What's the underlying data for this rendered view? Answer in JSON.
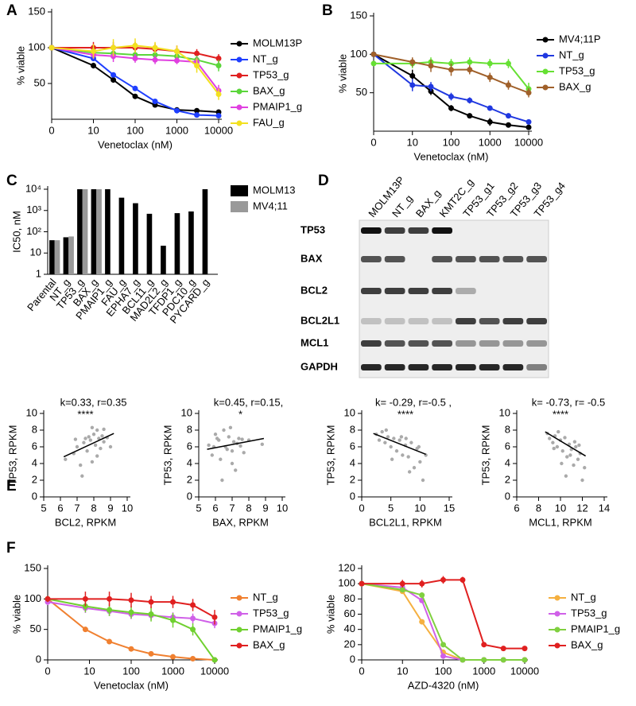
{
  "chart_data": [
    {
      "panel": "A",
      "type": "line",
      "xlabel": "Venetoclax (nM)",
      "ylabel": "% viable",
      "xlog": true,
      "x": [
        0,
        10,
        30,
        100,
        300,
        1000,
        3000,
        10000
      ],
      "xlim": [
        0,
        10000
      ],
      "xticks": [
        0,
        10,
        100,
        1000,
        10000
      ],
      "ylim": [
        0,
        150
      ],
      "yticks": [
        50,
        100,
        150
      ],
      "series": [
        {
          "name": "MOLM13P",
          "color": "#000000",
          "values": [
            100,
            75,
            55,
            32,
            20,
            13,
            12,
            10
          ],
          "errors": [
            2,
            4,
            4,
            3,
            2,
            2,
            2,
            2
          ]
        },
        {
          "name": "NT_g",
          "color": "#1f3fff",
          "values": [
            100,
            85,
            62,
            43,
            25,
            12,
            6,
            5
          ],
          "errors": [
            2,
            3,
            3,
            3,
            2,
            2,
            2,
            2
          ]
        },
        {
          "name": "TP53_g",
          "color": "#e02020",
          "values": [
            100,
            100,
            100,
            100,
            98,
            95,
            92,
            85
          ],
          "errors": [
            3,
            8,
            8,
            8,
            8,
            8,
            6,
            6
          ]
        },
        {
          "name": "BAX_g",
          "color": "#5bd63b",
          "values": [
            100,
            93,
            92,
            90,
            90,
            88,
            83,
            75
          ],
          "errors": [
            3,
            8,
            8,
            8,
            6,
            8,
            6,
            8
          ]
        },
        {
          "name": "PMAIP1_g",
          "color": "#e040e0",
          "values": [
            100,
            90,
            88,
            85,
            83,
            82,
            80,
            40
          ],
          "errors": [
            3,
            6,
            8,
            6,
            6,
            5,
            6,
            8
          ]
        },
        {
          "name": "FAU_g",
          "color": "#f2e020",
          "values": [
            100,
            95,
            100,
            103,
            100,
            95,
            75,
            35
          ],
          "errors": [
            3,
            10,
            12,
            10,
            8,
            8,
            10,
            8
          ]
        }
      ]
    },
    {
      "panel": "B",
      "type": "line",
      "xlabel": "Venetoclax (nM)",
      "ylabel": "% viable",
      "xlog": true,
      "x": [
        0,
        10,
        30,
        100,
        300,
        1000,
        3000,
        10000
      ],
      "xlim": [
        0,
        10000
      ],
      "xticks": [
        0,
        10,
        100,
        1000,
        10000
      ],
      "ylim": [
        0,
        150
      ],
      "yticks": [
        50,
        100,
        150
      ],
      "series": [
        {
          "name": "MV4;11P",
          "color": "#000000",
          "values": [
            100,
            72,
            52,
            30,
            20,
            12,
            8,
            5
          ],
          "errors": [
            2,
            8,
            5,
            4,
            3,
            5,
            3,
            2
          ]
        },
        {
          "name": "NT_g",
          "color": "#2038e0",
          "values": [
            100,
            60,
            58,
            45,
            40,
            30,
            20,
            12
          ],
          "errors": [
            3,
            8,
            6,
            5,
            4,
            3,
            3,
            2
          ]
        },
        {
          "name": "TP53_g",
          "color": "#66e033",
          "values": [
            88,
            88,
            90,
            88,
            90,
            88,
            88,
            55
          ],
          "errors": [
            3,
            6,
            6,
            6,
            6,
            6,
            6,
            8
          ]
        },
        {
          "name": "BAX_g",
          "color": "#a0602a",
          "values": [
            100,
            90,
            85,
            80,
            80,
            70,
            60,
            50
          ],
          "errors": [
            3,
            6,
            8,
            8,
            6,
            6,
            6,
            6
          ]
        }
      ]
    },
    {
      "panel": "C",
      "type": "bar",
      "ylabel": "IC50, nM",
      "ylog": true,
      "categories": [
        "Parental",
        "NT_g",
        "TP53_g",
        "BAX_g",
        "PMAIP1_g",
        "FAU_g",
        "EPHA7_g",
        "BCL11_g",
        "MAD2L2_g",
        "TFDP1_g",
        "PDC10_g",
        "PYCARD_g"
      ],
      "ylim": [
        1,
        10000
      ],
      "yticks": [
        1,
        10,
        {
          "value": 100,
          "label": "10²"
        },
        {
          "value": 1000,
          "label": "10³"
        },
        {
          "value": 10000,
          "label": "10⁴"
        }
      ],
      "series": [
        {
          "name": "MOLM13",
          "color": "#000000",
          "values": [
            40,
            55,
            10000,
            10000,
            10000,
            4000,
            2200,
            700,
            22,
            750,
            900,
            10000
          ]
        },
        {
          "name": "MV4;11",
          "color": "#999999",
          "values": [
            40,
            60,
            10000,
            10000,
            null,
            null,
            null,
            null,
            null,
            null,
            null,
            null
          ]
        }
      ]
    },
    {
      "panel": "E",
      "type": "scatter",
      "xlabel": "BCL2,  RPKM",
      "ylabel": "TP53,  RPKM",
      "annotation": "k=0.33, r=0.35",
      "significance": "****",
      "xlim": [
        5,
        10
      ],
      "xticks": [
        5,
        6,
        7,
        8,
        9,
        10
      ],
      "ylim": [
        0,
        10
      ],
      "yticks": [
        0,
        2,
        4,
        6,
        8,
        10
      ],
      "color": "#aaaaaa",
      "x": [
        6.3,
        6.8,
        7.0,
        7.2,
        7.4,
        7.5,
        7.6,
        7.7,
        7.8,
        7.9,
        8.0,
        8.1,
        8.2,
        8.3,
        8.4,
        8.5,
        8.6,
        8.8,
        9.0,
        7.3,
        7.9,
        8.2,
        6.9,
        8.6
      ],
      "values": [
        4.5,
        5.2,
        6.0,
        3.8,
        6.5,
        7.0,
        5.5,
        7.2,
        6.8,
        4.2,
        7.5,
        6.2,
        8.0,
        7.0,
        5.8,
        7.3,
        6.6,
        7.1,
        6.0,
        2.5,
        8.3,
        4.9,
        6.9,
        8.1
      ],
      "fit": {
        "x": [
          6.2,
          9.2
        ],
        "y": [
          4.8,
          7.6
        ]
      }
    },
    {
      "type": "scatter",
      "xlabel": "BAX, RPKM",
      "ylabel": "TP53,  RPKM",
      "annotation": "k=0.45, r=0.15,",
      "significance": "*",
      "xlim": [
        5,
        10
      ],
      "xticks": [
        5,
        6,
        7,
        8,
        9,
        10
      ],
      "ylim": [
        0,
        10
      ],
      "yticks": [
        0,
        2,
        4,
        6,
        8,
        10
      ],
      "color": "#aaaaaa",
      "x": [
        5.6,
        5.8,
        6.0,
        6.2,
        6.3,
        6.5,
        6.6,
        6.8,
        7.0,
        7.1,
        7.2,
        7.4,
        7.5,
        7.7,
        8.0,
        8.8,
        6.4,
        6.9,
        7.3,
        5.9,
        6.1,
        7.6,
        6.7,
        7.0
      ],
      "values": [
        6.2,
        5.0,
        7.5,
        6.8,
        4.5,
        8.0,
        6.0,
        7.2,
        5.5,
        6.6,
        3.2,
        7.0,
        6.1,
        5.3,
        6.8,
        6.3,
        2.0,
        8.3,
        6.4,
        6.0,
        7.0,
        6.9,
        5.7,
        4.0
      ],
      "fit": {
        "x": [
          5.5,
          8.9
        ],
        "y": [
          5.7,
          7.0
        ]
      }
    },
    {
      "type": "scatter",
      "xlabel": "BCL2L1, RPKM",
      "ylabel": "TP53,  RPKM",
      "annotation": "k= -0.29, r=-0.5 ,",
      "significance": "****",
      "xlim": [
        0,
        15
      ],
      "xticks": [
        0,
        5,
        10,
        15
      ],
      "ylim": [
        0,
        10
      ],
      "yticks": [
        0,
        2,
        4,
        6,
        8,
        10
      ],
      "color": "#aaaaaa",
      "x": [
        2.5,
        3,
        3.5,
        4,
        4.5,
        5,
        5.5,
        6,
        6.5,
        7,
        7.5,
        8,
        8.5,
        9,
        9.5,
        10,
        10.5,
        11,
        4.2,
        6.8,
        8.2,
        9.8,
        5.2,
        7.6
      ],
      "values": [
        7.5,
        6.8,
        7.8,
        6.5,
        7.2,
        6.0,
        7.0,
        5.5,
        6.8,
        5.0,
        6.2,
        4.8,
        6.5,
        3.5,
        5.8,
        4.2,
        2.0,
        5.0,
        8.0,
        7.2,
        3.0,
        6.0,
        4.5,
        7.0
      ],
      "fit": {
        "x": [
          2,
          11
        ],
        "y": [
          7.6,
          5.1
        ]
      }
    },
    {
      "type": "scatter",
      "xlabel": "MCL1, RPKM",
      "ylabel": "TP53,  RPKM",
      "annotation": "k= -0.73, r= -0.5",
      "significance": "****",
      "xlim": [
        6,
        14
      ],
      "xticks": [
        6,
        8,
        10,
        12,
        14
      ],
      "ylim": [
        0,
        10
      ],
      "yticks": [
        0,
        2,
        4,
        6,
        8,
        10
      ],
      "color": "#aaaaaa",
      "x": [
        8.8,
        9.0,
        9.3,
        9.5,
        9.7,
        10,
        10.2,
        10.4,
        10.6,
        10.8,
        11,
        11.2,
        11.4,
        11.6,
        11.8,
        12,
        12.2,
        9.8,
        10.5,
        11.3,
        10.1,
        11.7,
        9.4,
        10.9
      ],
      "values": [
        7.6,
        7.0,
        6.5,
        7.3,
        6.0,
        6.8,
        5.5,
        7.1,
        4.8,
        6.3,
        5.7,
        3.8,
        6.0,
        4.5,
        5.2,
        2.0,
        3.5,
        7.8,
        2.5,
        6.6,
        4.0,
        6.2,
        5.8,
        5.0
      ],
      "fit": {
        "x": [
          8.6,
          12.3
        ],
        "y": [
          7.8,
          4.9
        ]
      }
    },
    {
      "panel": "F",
      "type": "line",
      "xlabel": "Venetoclax (nM)",
      "ylabel": "% viable",
      "xlog": true,
      "x": [
        0,
        8,
        30,
        100,
        300,
        1000,
        3000,
        10000
      ],
      "xlim": [
        0,
        10000
      ],
      "xticks": [
        0,
        10,
        100,
        1000,
        10000
      ],
      "ylim": [
        0,
        150
      ],
      "yticks": [
        0,
        50,
        100,
        150
      ],
      "series": [
        {
          "name": "NT_g",
          "color": "#f08030",
          "values": [
            100,
            50,
            30,
            18,
            10,
            5,
            2,
            0
          ],
          "errors": [
            3,
            2,
            2,
            2,
            2,
            1,
            1,
            1
          ]
        },
        {
          "name": "TP53_g",
          "color": "#d060e8",
          "values": [
            95,
            85,
            80,
            75,
            73,
            70,
            68,
            60
          ],
          "errors": [
            5,
            8,
            8,
            8,
            8,
            8,
            8,
            8
          ]
        },
        {
          "name": "PMAIP1_g",
          "color": "#70d030",
          "values": [
            100,
            88,
            82,
            78,
            75,
            65,
            50,
            0
          ],
          "errors": [
            5,
            10,
            10,
            10,
            12,
            12,
            10,
            2
          ]
        },
        {
          "name": "BAX_g",
          "color": "#e02020",
          "values": [
            100,
            100,
            100,
            98,
            95,
            95,
            90,
            70
          ],
          "errors": [
            5,
            12,
            12,
            12,
            10,
            10,
            10,
            12
          ]
        }
      ]
    },
    {
      "type": "line",
      "xlabel": "AZD-4320 (nM)",
      "ylabel": "% viable",
      "xlog": true,
      "x": [
        0,
        10,
        30,
        100,
        300,
        1000,
        3000,
        10000
      ],
      "xlim": [
        0,
        10000
      ],
      "xticks": [
        0,
        10,
        100,
        1000,
        10000
      ],
      "ylim": [
        0,
        120
      ],
      "yticks": [
        0,
        20,
        40,
        60,
        80,
        100,
        120
      ],
      "series": [
        {
          "name": "NT_g",
          "color": "#f5b040",
          "values": [
            100,
            90,
            50,
            10,
            0,
            0,
            0,
            0
          ],
          "errors": [
            3,
            3,
            3,
            2,
            1,
            1,
            1,
            1
          ]
        },
        {
          "name": "TP53_g",
          "color": "#d060e8",
          "values": [
            100,
            95,
            78,
            5,
            0,
            0,
            0,
            0
          ],
          "errors": [
            3,
            3,
            3,
            2,
            1,
            1,
            1,
            1
          ]
        },
        {
          "name": "PMAIP1_g",
          "color": "#80d040",
          "values": [
            100,
            92,
            85,
            20,
            0,
            0,
            0,
            0
          ],
          "errors": [
            3,
            3,
            3,
            2,
            1,
            1,
            1,
            1
          ]
        },
        {
          "name": "BAX_g",
          "color": "#e02020",
          "values": [
            100,
            100,
            100,
            105,
            105,
            20,
            15,
            15
          ],
          "errors": [
            3,
            5,
            5,
            5,
            4,
            3,
            2,
            2
          ]
        }
      ]
    }
  ],
  "blot": {
    "panel": "D",
    "lanes": [
      "MOLM13P",
      "NT_g",
      "BAX_g",
      "KMT2C_g",
      "TP53_g1",
      "TP53_g2",
      "TP53_g3",
      "TP53_g4"
    ],
    "proteins": [
      "TP53",
      "BAX",
      "BCL2",
      "BCL2L1",
      "MCL1",
      "GAPDH"
    ]
  }
}
